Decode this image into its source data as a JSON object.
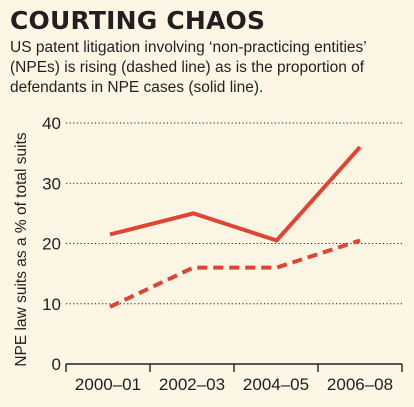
{
  "header": {
    "title": "COURTING CHAOS",
    "subtitle": "US patent litigation involving ‘non-practicing entities’ (NPEs) is rising (dashed line) as is the proportion of defendants in NPE cases (solid line)."
  },
  "colors": {
    "series": "#e04433",
    "background": "#fdf6e4",
    "text": "#231f20",
    "grid": "#231f20"
  },
  "chart_data": {
    "type": "line",
    "categories": [
      "2000–01",
      "2002–03",
      "2004–05",
      "2006–08"
    ],
    "ylabel": "NPE law suits as a % of total suits",
    "xlabel": "",
    "ylim": [
      0,
      40
    ],
    "yticks": [
      0,
      10,
      20,
      30,
      40
    ],
    "grid": "horizontal dotted",
    "legend": "none",
    "series": [
      {
        "style": "solid",
        "values": [
          21.5,
          25,
          20.5,
          36
        ]
      },
      {
        "style": "dashed",
        "values": [
          9.5,
          16,
          16,
          20.5
        ]
      }
    ]
  }
}
